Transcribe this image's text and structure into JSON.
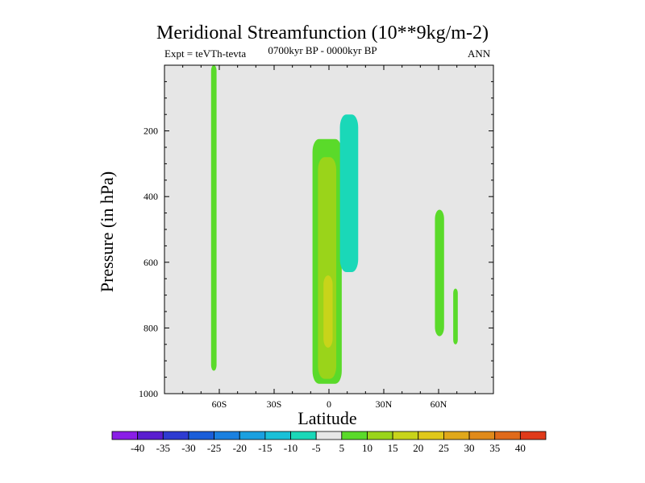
{
  "chart_data": {
    "type": "contour",
    "title": "Meridional Streamfunction (10**9kg/m-2)",
    "left_subtitle": "Expt = teVTh-tevta",
    "center_subtitle": "0700kyr BP - 0000kyr BP",
    "right_subtitle": "ANN",
    "xlabel": "Latitude",
    "ylabel": "Pressure (in hPa)",
    "x_range": [
      -90,
      90
    ],
    "x_ticks": [
      {
        "value": -60,
        "label": "60S"
      },
      {
        "value": -30,
        "label": "30S"
      },
      {
        "value": 0,
        "label": "0"
      },
      {
        "value": 30,
        "label": "30N"
      },
      {
        "value": 60,
        "label": "60N"
      }
    ],
    "y_range": [
      0,
      1000
    ],
    "y_reversed": true,
    "y_ticks": [
      200,
      400,
      600,
      800,
      1000
    ],
    "background_color": "#e6e6e6",
    "colorbar": {
      "levels": [
        -40,
        -35,
        -30,
        -25,
        -20,
        -15,
        -10,
        -5,
        5,
        10,
        15,
        20,
        25,
        30,
        35,
        40
      ],
      "colors": [
        "#8a1ee6",
        "#5a1ecf",
        "#2e3bd1",
        "#1a5ed9",
        "#1a80e0",
        "#1aa0e0",
        "#1ac0d8",
        "#1ad8b8",
        "#e6e6e6",
        "#5ada2a",
        "#9ad41a",
        "#c8d41a",
        "#e0c81a",
        "#e0a81a",
        "#e08a1a",
        "#e06a1a",
        "#e03a1a"
      ]
    },
    "regions": [
      {
        "name": "streamfunction 5 to 10 band near 63S",
        "lat": [
          -64.5,
          -61.5
        ],
        "pressure": [
          0,
          930
        ],
        "level": "5 to 10"
      },
      {
        "name": "streamfunction 5 to 10 cell near equator",
        "lat": [
          -9,
          7
        ],
        "pressure": [
          225,
          970
        ],
        "level": "5 to 10"
      },
      {
        "name": "streamfunction 10 to 15 core near equator",
        "lat": [
          -6,
          4
        ],
        "pressure": [
          280,
          955
        ],
        "level": "10 to 15"
      },
      {
        "name": "streamfunction 15 to 20 core near equator",
        "lat": [
          -3,
          2
        ],
        "pressure": [
          640,
          860
        ],
        "level": "15 to 20"
      },
      {
        "name": "streamfunction -10 to -5 cell near 10N",
        "lat": [
          6,
          16
        ],
        "pressure": [
          150,
          630
        ],
        "level": "-10 to -5"
      },
      {
        "name": "streamfunction 5 to 10 cell near 61N",
        "lat": [
          58,
          63
        ],
        "pressure": [
          440,
          825
        ],
        "level": "5 to 10"
      },
      {
        "name": "streamfunction 5 to 10 cell near 69N",
        "lat": [
          68,
          70.5
        ],
        "pressure": [
          680,
          850
        ],
        "level": "5 to 10"
      }
    ]
  }
}
